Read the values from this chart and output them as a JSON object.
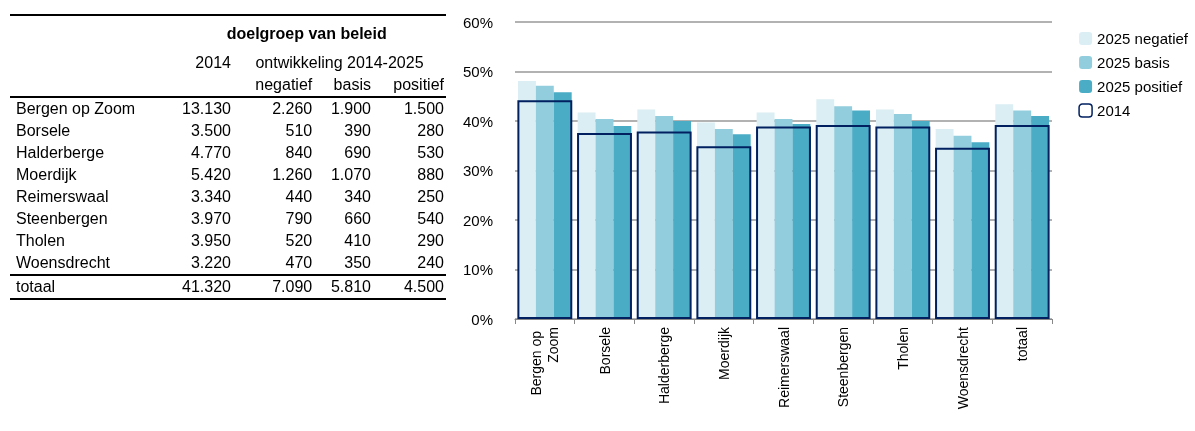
{
  "chart_data": [
    {
      "type": "other",
      "title": "doelgroep van beleid",
      "annotations": [
        "ontwikkeling 2014-2025"
      ],
      "categories": [
        "2014",
        "negatief",
        "basis",
        "positief"
      ],
      "y_categories": [
        "Bergen op Zoom",
        "Borsele",
        "Halderberge",
        "Moerdijk",
        "Reimerswaal",
        "Steenbergen",
        "Tholen",
        "Woensdrecht",
        "totaal"
      ],
      "cell_labels": [
        [
          "13.130",
          "2.260",
          "1.900",
          "1.500"
        ],
        [
          "3.500",
          "510",
          "390",
          "280"
        ],
        [
          "4.770",
          "840",
          "690",
          "530"
        ],
        [
          "5.420",
          "1.260",
          "1.070",
          "880"
        ],
        [
          "3.340",
          "440",
          "340",
          "250"
        ],
        [
          "3.970",
          "790",
          "660",
          "540"
        ],
        [
          "3.950",
          "520",
          "410",
          "290"
        ],
        [
          "3.220",
          "470",
          "350",
          "240"
        ],
        [
          "41.320",
          "7.090",
          "5.810",
          "4.500"
        ]
      ]
    },
    {
      "type": "bar",
      "categories": [
        "Bergen op Zoom",
        "Borsele",
        "Halderberge",
        "Moerdijk",
        "Reimerswaal",
        "Steenbergen",
        "Tholen",
        "Woensdrecht",
        "totaal"
      ],
      "series": [
        {
          "name": "2025 negatief",
          "color": "#daeef4",
          "values": [
            48.1,
            41.7,
            42.3,
            39.7,
            41.7,
            44.4,
            42.3,
            38.4,
            43.4
          ]
        },
        {
          "name": "2025 basis",
          "color": "#92cddd",
          "values": [
            47.1,
            40.4,
            41.0,
            38.4,
            40.4,
            43.0,
            41.4,
            37.0,
            42.1
          ]
        },
        {
          "name": "2025 positief",
          "color": "#4bacc6",
          "values": [
            45.8,
            39.0,
            40.0,
            37.3,
            39.4,
            42.1,
            40.0,
            35.7,
            41.0
          ]
        },
        {
          "name": "2014",
          "color": "#002060",
          "values": [
            44.2,
            37.6,
            37.9,
            34.9,
            38.9,
            39.2,
            38.9,
            34.6,
            39.2
          ]
        }
      ],
      "ylim": [
        0,
        60
      ],
      "yticks": [
        {
          "value": 0,
          "label": "0%"
        },
        {
          "value": 10,
          "label": "10%"
        },
        {
          "value": 20,
          "label": "20%"
        },
        {
          "value": 30,
          "label": "30%"
        },
        {
          "value": 40,
          "label": "40%"
        },
        {
          "value": 50,
          "label": "50%"
        },
        {
          "value": 60,
          "label": "60%"
        }
      ],
      "grid": "y",
      "legend": "right"
    }
  ]
}
